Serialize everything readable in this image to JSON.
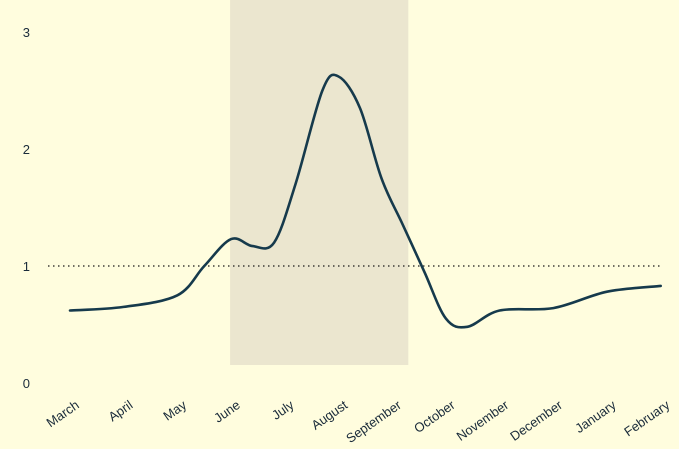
{
  "colors": {
    "background": "#fffdde",
    "line": "#163a4c",
    "highlight_band": "#ebe6cf",
    "reference_line": "#1a1a1a",
    "text": "#1a2b3a"
  },
  "chart_data": {
    "type": "line",
    "title": "",
    "xlabel": "",
    "ylabel": "",
    "categories": [
      "March",
      "April",
      "May",
      "June",
      "July",
      "August",
      "September",
      "October",
      "November",
      "December",
      "January",
      "February"
    ],
    "series": [
      {
        "name": "",
        "x": [
          0,
          1,
          2,
          2.5,
          3,
          3.4,
          3.8,
          4.2,
          4.7,
          5,
          5.4,
          5.8,
          6.2,
          6.6,
          7,
          7.4,
          8,
          9,
          10,
          11
        ],
        "values": [
          0.62,
          0.65,
          0.75,
          1.0,
          1.23,
          1.17,
          1.2,
          1.7,
          2.5,
          2.62,
          2.35,
          1.75,
          1.35,
          0.95,
          0.55,
          0.48,
          0.62,
          0.64,
          0.78,
          0.83
        ]
      }
    ],
    "ylim": [
      0,
      3
    ],
    "yticks": [
      "0",
      "1",
      "2",
      "3"
    ],
    "reference_line": {
      "y": 1,
      "style": "dotted"
    },
    "highlight_band": {
      "x_start": 3,
      "x_end": 6.3
    },
    "grid": false,
    "legend": "none"
  }
}
